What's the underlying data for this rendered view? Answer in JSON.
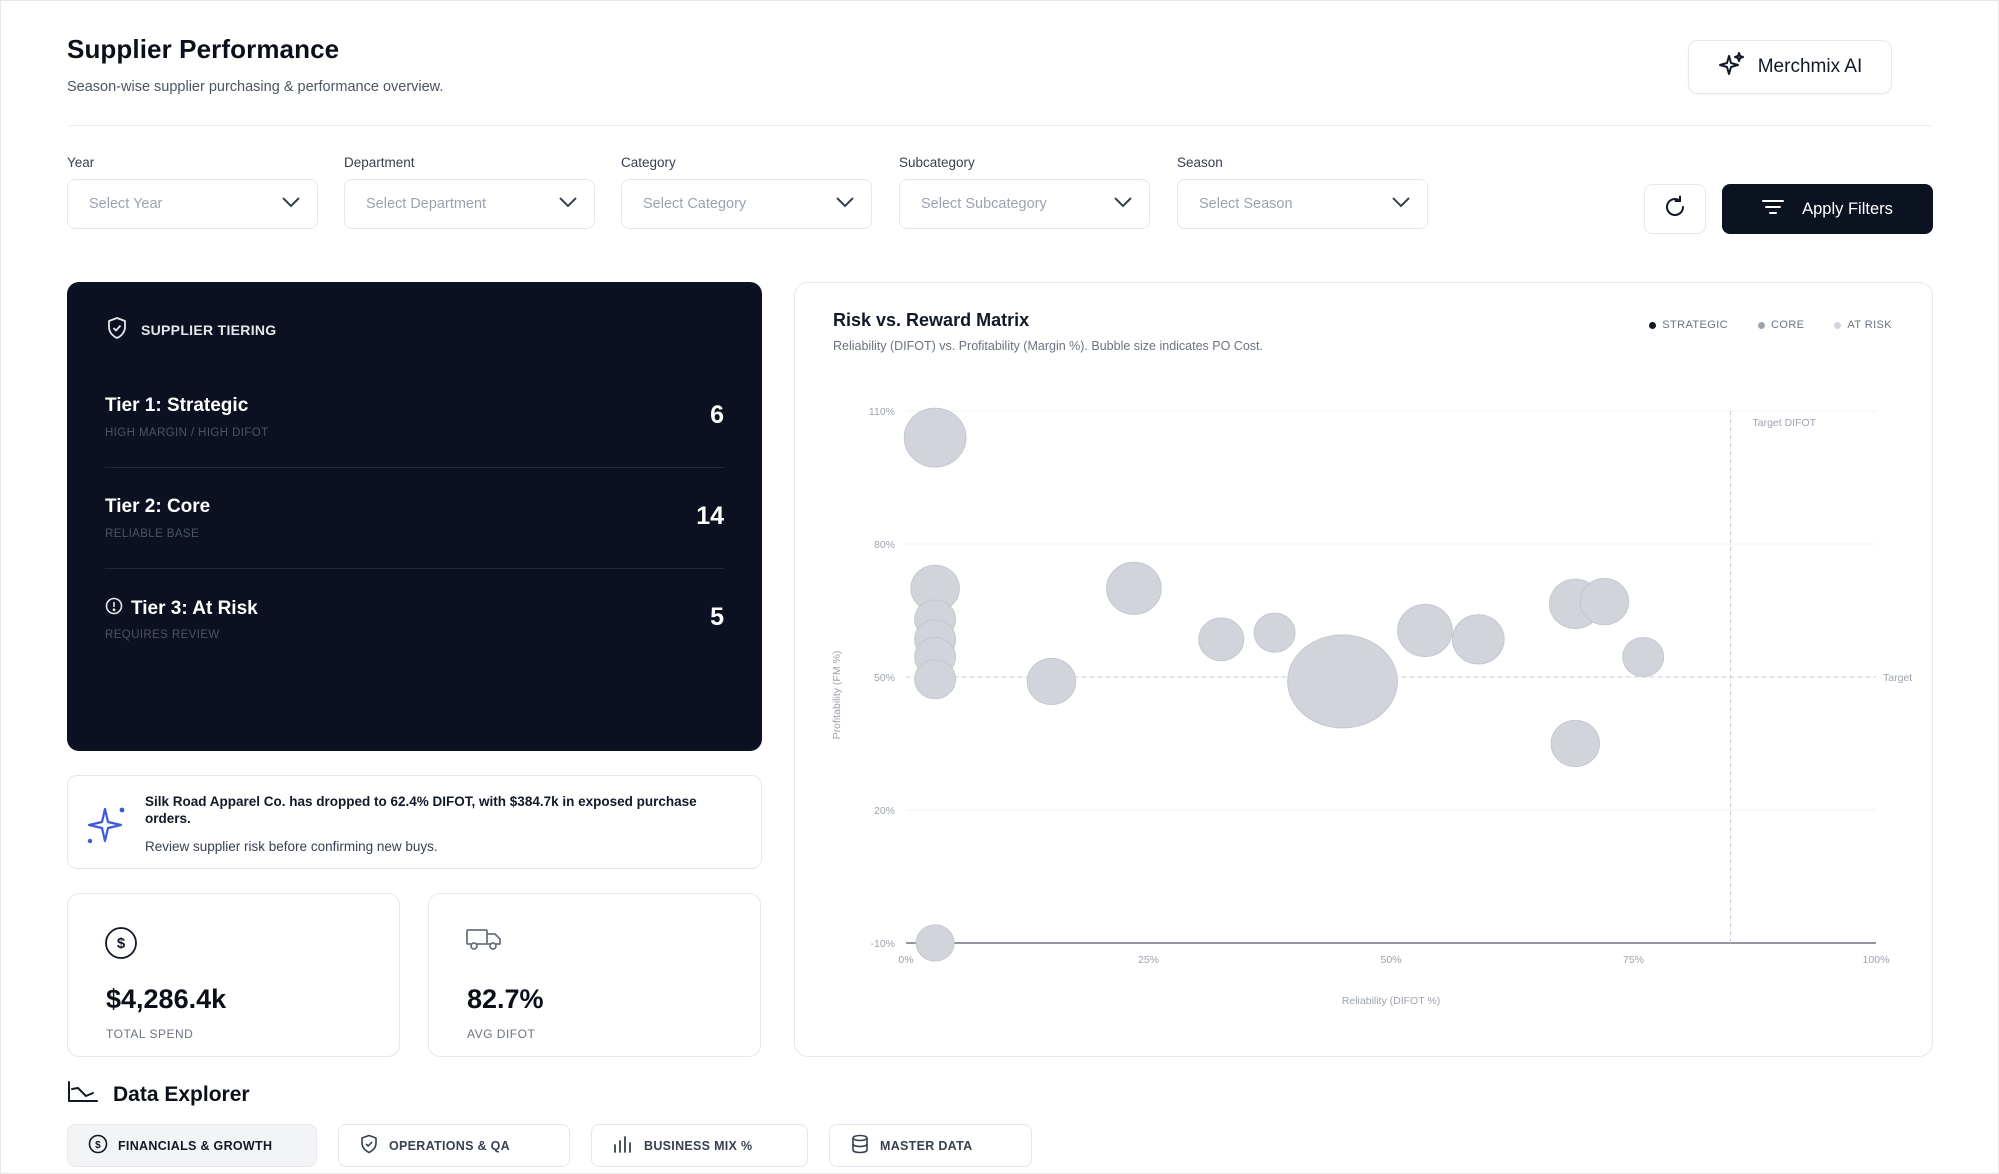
{
  "header": {
    "title": "Supplier Performance",
    "subtitle": "Season-wise supplier purchasing & performance overview.",
    "ai_button": "Merchmix AI"
  },
  "filters": [
    {
      "label": "Year",
      "placeholder": "Select Year"
    },
    {
      "label": "Department",
      "placeholder": "Select Department"
    },
    {
      "label": "Category",
      "placeholder": "Select Category"
    },
    {
      "label": "Subcategory",
      "placeholder": "Select Subcategory"
    },
    {
      "label": "Season",
      "placeholder": "Select Season"
    }
  ],
  "actions": {
    "apply": "Apply Filters"
  },
  "tiering": {
    "heading": "SUPPLIER TIERING",
    "tiers": [
      {
        "name": "Tier 1: Strategic",
        "sub": "HIGH MARGIN / HIGH DIFOT",
        "count": "6"
      },
      {
        "name": "Tier 2: Core",
        "sub": "RELIABLE BASE",
        "count": "14"
      },
      {
        "name": "Tier 3: At Risk",
        "sub": "REQUIRES REVIEW",
        "count": "5"
      }
    ]
  },
  "alert": {
    "message": "Silk Road Apparel Co. has dropped to 62.4% DIFOT, with $384.7k in exposed purchase orders.",
    "sub": "Review supplier risk before confirming new buys."
  },
  "kpis": [
    {
      "value": "$4,286.4k",
      "label": "TOTAL SPEND",
      "icon": "dollar-icon"
    },
    {
      "value": "82.7%",
      "label": "AVG DIFOT",
      "icon": "truck-icon"
    }
  ],
  "chart": {
    "title": "Risk vs. Reward Matrix",
    "subtitle": "Reliability (DIFOT) vs. Profitability (Margin %). Bubble size indicates PO Cost.",
    "legend": [
      {
        "label": "STRATEGIC",
        "color": "#111827"
      },
      {
        "label": "CORE",
        "color": "#9ca3af"
      },
      {
        "label": "AT RISK",
        "color": "#d1d5db"
      }
    ]
  },
  "chart_data": {
    "type": "scatter",
    "title": "Risk vs. Reward Matrix",
    "xlabel": "Reliability (DIFOT %)",
    "ylabel": "Profitability (FM %)",
    "xlim": [
      0,
      100
    ],
    "ylim": [
      -10,
      110
    ],
    "x_ticks": [
      "0%",
      "25%",
      "50%",
      "75%",
      "100%"
    ],
    "y_ticks": [
      "110%",
      "80%",
      "50%",
      "20%",
      "-10%"
    ],
    "y_tick_values": [
      110,
      80,
      50,
      20,
      -10
    ],
    "x_tick_values": [
      0,
      25,
      50,
      75,
      100
    ],
    "target_x": 85,
    "target_x_label": "Target DIFOT",
    "target_y": 50,
    "target_y_label": "Target",
    "bubble_color": "#d1d5db",
    "points": [
      {
        "x": 3,
        "y": 104,
        "size": 3
      },
      {
        "x": 3,
        "y": 70,
        "size": 1.6
      },
      {
        "x": 3,
        "y": 63,
        "size": 1
      },
      {
        "x": 3,
        "y": 58.5,
        "size": 1
      },
      {
        "x": 3,
        "y": 54.5,
        "size": 1
      },
      {
        "x": 3,
        "y": 49.5,
        "size": 1
      },
      {
        "x": 3,
        "y": -10,
        "size": 0.8
      },
      {
        "x": 15,
        "y": 49,
        "size": 1.6
      },
      {
        "x": 23.5,
        "y": 70,
        "size": 2.2
      },
      {
        "x": 32.5,
        "y": 58.5,
        "size": 1.3
      },
      {
        "x": 38,
        "y": 60,
        "size": 1
      },
      {
        "x": 45,
        "y": 49,
        "size": 9
      },
      {
        "x": 53.5,
        "y": 60.5,
        "size": 2.2
      },
      {
        "x": 59,
        "y": 58.5,
        "size": 1.9
      },
      {
        "x": 69,
        "y": 66.5,
        "size": 1.9
      },
      {
        "x": 72,
        "y": 67,
        "size": 1.6
      },
      {
        "x": 76,
        "y": 54.5,
        "size": 1
      },
      {
        "x": 69,
        "y": 35,
        "size": 1.6
      }
    ]
  },
  "explorer": {
    "title": "Data Explorer",
    "tabs": [
      {
        "label": "FINANCIALS & GROWTH",
        "icon": "dollar-circle-icon"
      },
      {
        "label": "OPERATIONS & QA",
        "icon": "shield-check-icon"
      },
      {
        "label": "BUSINESS MIX %",
        "icon": "bar-chart-icon"
      },
      {
        "label": "MASTER DATA",
        "icon": "database-icon"
      }
    ]
  }
}
